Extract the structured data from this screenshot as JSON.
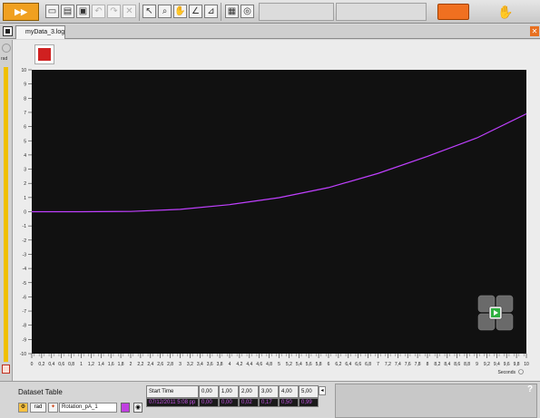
{
  "tab": {
    "label": "myData_3.log"
  },
  "left_strip": {
    "unit": "rad"
  },
  "chart_data": {
    "type": "line",
    "xlabel": "Seconds",
    "xlim": [
      0,
      10
    ],
    "ylim": [
      -10,
      10
    ],
    "x_ticks": [
      "0",
      "0,2",
      "0,4",
      "0,6",
      "0,8",
      "1",
      "1,2",
      "1,4",
      "1,6",
      "1,8",
      "2",
      "2,2",
      "2,4",
      "2,6",
      "2,8",
      "3",
      "3,2",
      "3,4",
      "3,6",
      "3,8",
      "4",
      "4,2",
      "4,4",
      "4,6",
      "4,8",
      "5",
      "5,2",
      "5,4",
      "5,6",
      "5,8",
      "6",
      "6,2",
      "6,4",
      "6,6",
      "6,8",
      "7",
      "7,2",
      "7,4",
      "7,6",
      "7,8",
      "8",
      "8,2",
      "8,4",
      "8,6",
      "8,8",
      "9",
      "9,2",
      "9,4",
      "9,6",
      "9,8",
      "10"
    ],
    "y_ticks": [
      "10",
      "9",
      "8",
      "7",
      "6",
      "5",
      "4",
      "3",
      "2",
      "1",
      "0",
      "-1",
      "-2",
      "-3",
      "-4",
      "-5",
      "-6",
      "-7",
      "-8",
      "-9",
      "-10"
    ],
    "series": [
      {
        "color": "#c040ff",
        "x": [
          0,
          1,
          2,
          3,
          4,
          5,
          6,
          7,
          8,
          9,
          10
        ],
        "y": [
          0,
          0,
          0.02,
          0.17,
          0.5,
          0.99,
          1.7,
          2.7,
          3.9,
          5.2,
          6.9
        ]
      }
    ],
    "background": "#111111"
  },
  "dataset": {
    "title": "Dataset Table",
    "unit": "rad",
    "name": "Rotation_pA_1",
    "series_color": "#c040e0",
    "columns": [
      "Start Time",
      "0,00",
      "1,00",
      "2,00",
      "3,00",
      "4,00",
      "5,00"
    ],
    "row": [
      "07/12/2011 5:08 pp",
      "0,00",
      "0,00",
      "0,02",
      "0,17",
      "0,50",
      "0,99"
    ]
  },
  "help_label": "?"
}
